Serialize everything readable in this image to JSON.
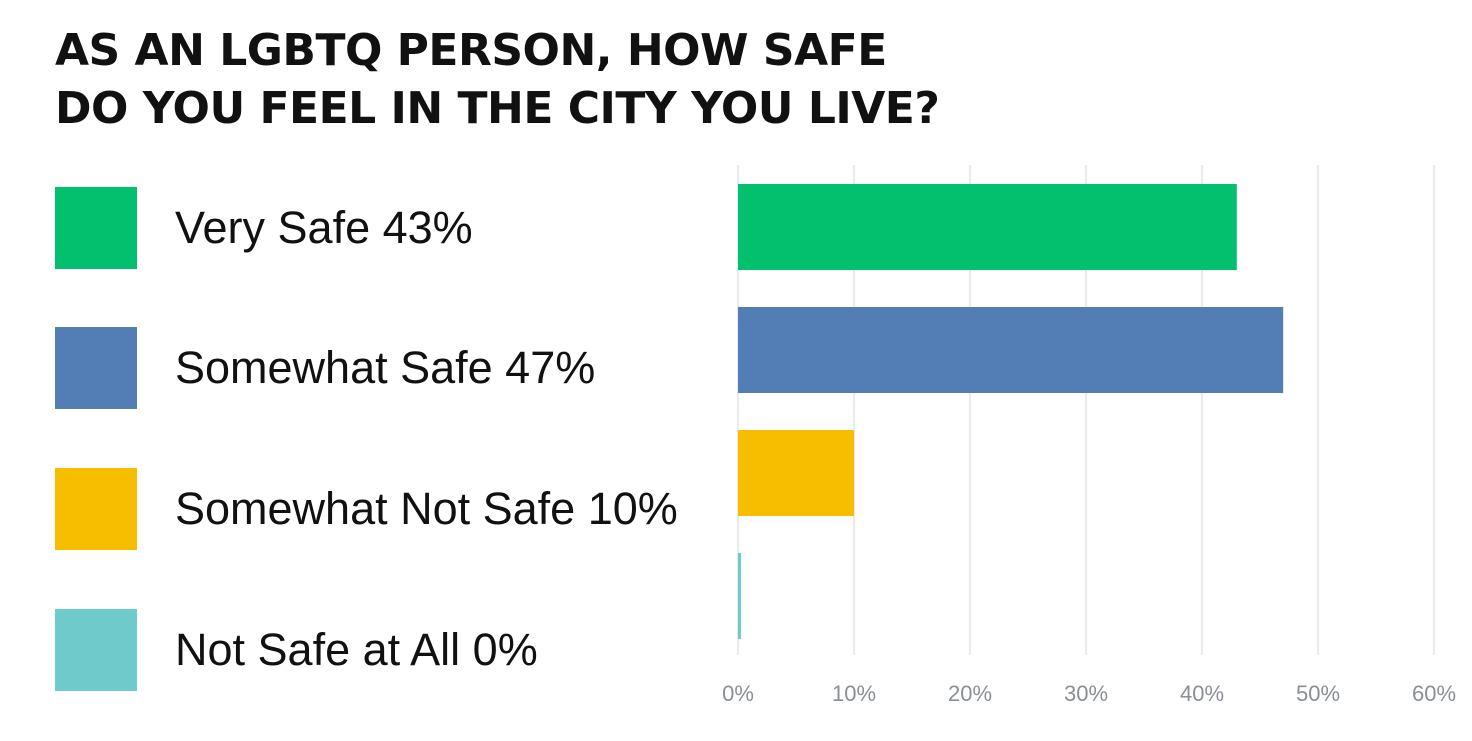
{
  "title": {
    "line1": "AS AN LGBTQ PERSON, HOW SAFE",
    "line2": "DO YOU FEEL IN THE CITY YOU LIVE?"
  },
  "legend": [
    {
      "label": "Very Safe 43%",
      "color": "#03c06f"
    },
    {
      "label": "Somewhat Safe 47%",
      "color": "#527db5"
    },
    {
      "label": "Somewhat Not Safe 10%",
      "color": "#f7be00"
    },
    {
      "label": "Not Safe at All 0%",
      "color": "#6fcacb"
    }
  ],
  "chart_data": {
    "type": "bar",
    "orientation": "horizontal",
    "categories": [
      "Very Safe",
      "Somewhat Safe",
      "Somewhat Not Safe",
      "Not Safe at All"
    ],
    "values": [
      43,
      47,
      10,
      0
    ],
    "colors": [
      "#03c06f",
      "#527db5",
      "#f7be00",
      "#6fcacb"
    ],
    "xlim": [
      0,
      60
    ],
    "xticks": [
      "0%",
      "10%",
      "20%",
      "30%",
      "40%",
      "50%",
      "60%"
    ],
    "grid": true,
    "title": "AS AN LGBTQ PERSON, HOW SAFE DO YOU FEEL IN THE CITY YOU LIVE?"
  }
}
